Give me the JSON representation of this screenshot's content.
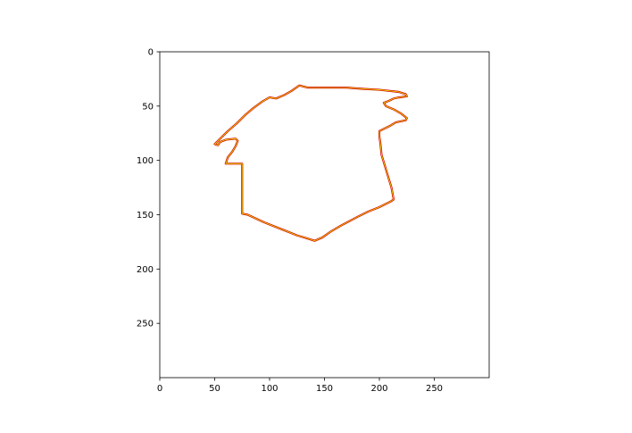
{
  "chart_data": {
    "type": "line",
    "title": "",
    "xlabel": "",
    "ylabel": "",
    "xlim": [
      0,
      300
    ],
    "ylim": [
      300,
      0
    ],
    "y_inverted": true,
    "grid": false,
    "legend": "none",
    "x_ticks": [
      0,
      50,
      100,
      150,
      200,
      250
    ],
    "y_ticks": [
      0,
      50,
      100,
      150,
      200,
      250
    ],
    "x_tick_labels": [
      "0",
      "50",
      "100",
      "150",
      "200",
      "250"
    ],
    "y_tick_labels": [
      "0",
      "50",
      "100",
      "150",
      "200",
      "250"
    ],
    "colors": {
      "outer": "#d40000",
      "inner": "#e6e600",
      "axes": "#000000"
    },
    "series": [
      {
        "closed": true,
        "points": [
          [
            127,
            31
          ],
          [
            135,
            33
          ],
          [
            150,
            33
          ],
          [
            170,
            33
          ],
          [
            183,
            34
          ],
          [
            200,
            35
          ],
          [
            218,
            37
          ],
          [
            224,
            39
          ],
          [
            225,
            41
          ],
          [
            218,
            42
          ],
          [
            213,
            43
          ],
          [
            209,
            45
          ],
          [
            204,
            47
          ],
          [
            206,
            50
          ],
          [
            213,
            53
          ],
          [
            220,
            57
          ],
          [
            225,
            61
          ],
          [
            224,
            63
          ],
          [
            215,
            65
          ],
          [
            210,
            68
          ],
          [
            204,
            71
          ],
          [
            200,
            73
          ],
          [
            200,
            78
          ],
          [
            201,
            85
          ],
          [
            202,
            95
          ],
          [
            205,
            105
          ],
          [
            208,
            115
          ],
          [
            211,
            125
          ],
          [
            213,
            136
          ],
          [
            210,
            138
          ],
          [
            200,
            143
          ],
          [
            190,
            147
          ],
          [
            180,
            152
          ],
          [
            165,
            160
          ],
          [
            155,
            166
          ],
          [
            148,
            171
          ],
          [
            141,
            174
          ],
          [
            135,
            172
          ],
          [
            125,
            169
          ],
          [
            110,
            163
          ],
          [
            95,
            157
          ],
          [
            80,
            150
          ],
          [
            75,
            149
          ],
          [
            75,
            140
          ],
          [
            75,
            125
          ],
          [
            75,
            112
          ],
          [
            75,
            103
          ],
          [
            70,
            103
          ],
          [
            60,
            103
          ],
          [
            62,
            97
          ],
          [
            66,
            92
          ],
          [
            69,
            87
          ],
          [
            71,
            82
          ],
          [
            69,
            80
          ],
          [
            60,
            81
          ],
          [
            55,
            83
          ],
          [
            53,
            86
          ],
          [
            50,
            85
          ],
          [
            55,
            80
          ],
          [
            62,
            73
          ],
          [
            70,
            66
          ],
          [
            78,
            58
          ],
          [
            85,
            52
          ],
          [
            93,
            46
          ],
          [
            100,
            42
          ],
          [
            106,
            43
          ],
          [
            113,
            40
          ],
          [
            120,
            36
          ],
          [
            127,
            31
          ]
        ]
      }
    ]
  }
}
